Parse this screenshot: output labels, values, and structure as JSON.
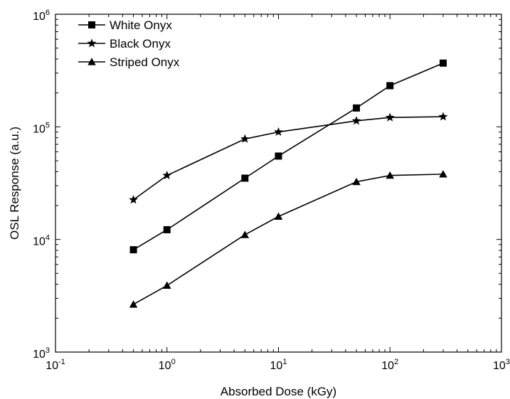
{
  "chart_data": {
    "type": "line",
    "xlabel": "Absorbed Dose (kGy)",
    "ylabel": "OSL Response (a.u.)",
    "xscale": "log",
    "yscale": "log",
    "xlim": [
      0.1,
      1000
    ],
    "ylim": [
      1000,
      1000000
    ],
    "x_ticks": [
      {
        "base": "10",
        "exp": "-1"
      },
      {
        "base": "10",
        "exp": "0"
      },
      {
        "base": "10",
        "exp": "1"
      },
      {
        "base": "10",
        "exp": "2"
      },
      {
        "base": "10",
        "exp": "3"
      }
    ],
    "y_ticks": [
      {
        "base": "10",
        "exp": "3"
      },
      {
        "base": "10",
        "exp": "4"
      },
      {
        "base": "10",
        "exp": "5"
      },
      {
        "base": "10",
        "exp": "6"
      }
    ],
    "grid": false,
    "legend_position": "top-left",
    "x": [
      0.5,
      1,
      5,
      10,
      50,
      100,
      300
    ],
    "series": [
      {
        "name": "White Onyx",
        "marker": "square",
        "color": "#000000",
        "values": [
          8100,
          12200,
          35000,
          55000,
          147000,
          232000,
          368000
        ]
      },
      {
        "name": "Black Onyx",
        "marker": "star",
        "color": "#000000",
        "values": [
          22500,
          37000,
          78000,
          90000,
          113000,
          121000,
          123000
        ]
      },
      {
        "name": "Striped Onyx",
        "marker": "triangle",
        "color": "#000000",
        "values": [
          2650,
          3900,
          11000,
          16000,
          32500,
          37000,
          38000
        ]
      }
    ]
  }
}
